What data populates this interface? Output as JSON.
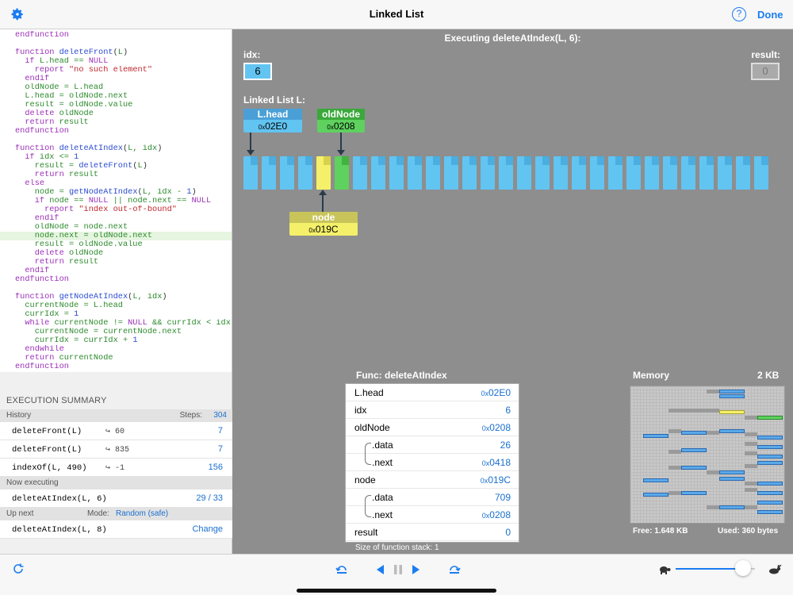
{
  "header": {
    "title": "Linked List",
    "done": "Done",
    "help": "?"
  },
  "code": [
    [
      [
        "kw",
        "endfunction"
      ]
    ],
    [],
    [
      [
        "kw",
        "function "
      ],
      [
        "bl",
        "deleteFront"
      ],
      [
        "tx",
        "("
      ],
      [
        "gr",
        "L"
      ],
      [
        "tx",
        ")"
      ]
    ],
    [
      [
        "kw",
        "  if "
      ],
      [
        "gr",
        "L.head == "
      ],
      [
        "kw",
        "NULL"
      ]
    ],
    [
      [
        "kw",
        "    report "
      ],
      [
        "rd",
        "\"no such element\""
      ]
    ],
    [
      [
        "kw",
        "  endif"
      ]
    ],
    [
      [
        "gr",
        "  oldNode = L.head"
      ]
    ],
    [
      [
        "gr",
        "  L.head = oldNode.next"
      ]
    ],
    [
      [
        "gr",
        "  result = oldNode.value"
      ]
    ],
    [
      [
        "kw",
        "  delete "
      ],
      [
        "gr",
        "oldNode"
      ]
    ],
    [
      [
        "kw",
        "  return "
      ],
      [
        "gr",
        "result"
      ]
    ],
    [
      [
        "kw",
        "endfunction"
      ]
    ],
    [],
    [
      [
        "kw",
        "function "
      ],
      [
        "bl",
        "deleteAtIndex"
      ],
      [
        "tx",
        "("
      ],
      [
        "gr",
        "L, idx"
      ],
      [
        "tx",
        ")"
      ]
    ],
    [
      [
        "kw",
        "  if "
      ],
      [
        "gr",
        "idx <= "
      ],
      [
        "bl",
        "1"
      ]
    ],
    [
      [
        "gr",
        "    result = "
      ],
      [
        "bl",
        "deleteFront"
      ],
      [
        "tx",
        "("
      ],
      [
        "gr",
        "L"
      ],
      [
        "tx",
        ")"
      ]
    ],
    [
      [
        "kw",
        "    return "
      ],
      [
        "gr",
        "result"
      ]
    ],
    [
      [
        "kw",
        "  else"
      ]
    ],
    [
      [
        "gr",
        "    node = "
      ],
      [
        "bl",
        "getNodeAtIndex"
      ],
      [
        "tx",
        "("
      ],
      [
        "gr",
        "L, idx - "
      ],
      [
        "bl",
        "1"
      ],
      [
        "tx",
        ")"
      ]
    ],
    [
      [
        "kw",
        "    if "
      ],
      [
        "gr",
        "node == "
      ],
      [
        "kw",
        "NULL"
      ],
      [
        "gr",
        " || node.next == "
      ],
      [
        "kw",
        "NULL"
      ]
    ],
    [
      [
        "kw",
        "      report "
      ],
      [
        "rd",
        "\"index out-of-bound\""
      ]
    ],
    [
      [
        "kw",
        "    endif"
      ]
    ],
    [
      [
        "gr",
        "    oldNode = node.next"
      ]
    ],
    [
      [
        "gr",
        "    node.next = oldNode.next"
      ]
    ],
    [
      [
        "gr",
        "    result = oldNode.value"
      ]
    ],
    [
      [
        "kw",
        "    delete "
      ],
      [
        "gr",
        "oldNode"
      ]
    ],
    [
      [
        "kw",
        "    return "
      ],
      [
        "gr",
        "result"
      ]
    ],
    [
      [
        "kw",
        "  endif"
      ]
    ],
    [
      [
        "kw",
        "endfunction"
      ]
    ],
    [],
    [
      [
        "kw",
        "function "
      ],
      [
        "bl",
        "getNodeAtIndex"
      ],
      [
        "tx",
        "("
      ],
      [
        "gr",
        "L, idx"
      ],
      [
        "tx",
        ")"
      ]
    ],
    [
      [
        "gr",
        "  currentNode = L.head"
      ]
    ],
    [
      [
        "gr",
        "  currIdx = "
      ],
      [
        "bl",
        "1"
      ]
    ],
    [
      [
        "kw",
        "  while "
      ],
      [
        "gr",
        "currentNode != "
      ],
      [
        "kw",
        "NULL"
      ],
      [
        "gr",
        " && currIdx < idx"
      ]
    ],
    [
      [
        "gr",
        "    currentNode = currentNode.next"
      ]
    ],
    [
      [
        "gr",
        "    currIdx = currIdx + "
      ],
      [
        "bl",
        "1"
      ]
    ],
    [
      [
        "kw",
        "  endwhile"
      ]
    ],
    [
      [
        "kw",
        "  return "
      ],
      [
        "gr",
        "currentNode"
      ]
    ],
    [
      [
        "kw",
        "endfunction"
      ]
    ]
  ],
  "summary": {
    "title": "EXECUTION SUMMARY",
    "history_label": "History",
    "steps_label": "Steps:",
    "steps_value": "304",
    "history": [
      {
        "call": "deleteFront(L)",
        "ret": "60",
        "count": "7"
      },
      {
        "call": "deleteFront(L)",
        "ret": "835",
        "count": "7"
      },
      {
        "call": "indexOf(L, 490)",
        "ret": "-1",
        "count": "156"
      }
    ],
    "now_label": "Now executing",
    "now_call": "deleteAtIndex(L, 6)",
    "now_progress": "29 / 33",
    "next_label": "Up next",
    "mode_label": "Mode:",
    "mode_value": "Random (safe)",
    "next_call": "deleteAtIndex(L, 8)",
    "change": "Change"
  },
  "viz": {
    "executing": "Executing deleteAtIndex(L, 6):",
    "idx_label": "idx:",
    "idx_value": "6",
    "result_label": "result:",
    "result_value": "0",
    "list_label": "Linked List L:",
    "pointers": [
      {
        "name": "L.head",
        "prefix": "0x",
        "addr": "02E0"
      },
      {
        "name": "oldNode",
        "prefix": "0x",
        "addr": "0208"
      },
      {
        "name": "node",
        "prefix": "0x",
        "addr": "019C"
      }
    ]
  },
  "func": {
    "title": "Func: deleteAtIndex",
    "rows": [
      {
        "name": "L.head",
        "prefix": "0x",
        "value": "02E0"
      },
      {
        "name": "idx",
        "prefix": "",
        "value": "6"
      },
      {
        "name": "oldNode",
        "prefix": "0x",
        "value": "0208"
      },
      {
        "name": ".data",
        "prefix": "",
        "value": "26"
      },
      {
        "name": ".next",
        "prefix": "0x",
        "value": "0418"
      },
      {
        "name": "node",
        "prefix": "0x",
        "value": "019C"
      },
      {
        "name": ".data",
        "prefix": "",
        "value": "709"
      },
      {
        "name": ".next",
        "prefix": "0x",
        "value": "0208"
      },
      {
        "name": "result",
        "prefix": "",
        "value": "0"
      }
    ],
    "stack_size": "Size of function stack: 1"
  },
  "memory": {
    "title": "Memory",
    "size": "2 KB",
    "free": "Free: 1.648 KB",
    "used": "Used: 360 bytes"
  },
  "colors": {
    "accent": "#1a7cf3",
    "node": "#62c4f1",
    "node_prev": "#f5f06a",
    "node_del": "#5ed15e"
  },
  "speed": {
    "value": 0.85
  }
}
